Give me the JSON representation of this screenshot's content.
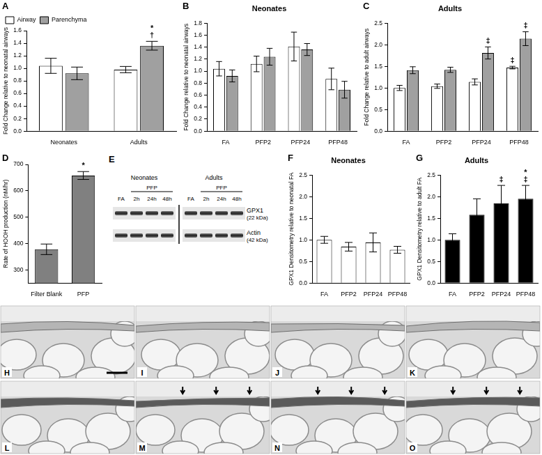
{
  "chart_data": [
    {
      "type": "bar",
      "panel": "A",
      "y_label": "Fold Change relative to neonatal airways",
      "categories": [
        "Neonates",
        "Adults"
      ],
      "series": [
        {
          "name": "Airway",
          "color": "#ffffff",
          "values": [
            1.04,
            0.98
          ],
          "errors": [
            0.12,
            0.05
          ]
        },
        {
          "name": "Parenchyma",
          "color": "#a0a0a0",
          "values": [
            0.92,
            1.36
          ],
          "errors": [
            0.1,
            0.07
          ]
        }
      ],
      "ylim": [
        0,
        1.6
      ],
      "yticks": [
        {
          "value": 0,
          "label": "0.0"
        },
        {
          "value": 0.2,
          "label": "0.2"
        },
        {
          "value": 0.4,
          "label": "0.4"
        },
        {
          "value": 0.6,
          "label": "0.6"
        },
        {
          "value": 0.8,
          "label": "0.8"
        },
        {
          "value": 1.0,
          "label": "1.0"
        },
        {
          "value": 1.2,
          "label": "1.2"
        },
        {
          "value": 1.4,
          "label": "1.4"
        },
        {
          "value": 1.6,
          "label": "1.6"
        }
      ],
      "annotations": [
        {
          "category": "Adults",
          "series": "Parenchyma",
          "text": "†"
        },
        {
          "category": "Adults",
          "series": "Parenchyma",
          "text": "*"
        }
      ],
      "legend": "upper left",
      "grid": false
    },
    {
      "type": "bar",
      "panel": "B",
      "title": "Neonates",
      "y_label": "Fold Change relative to neonatal airways",
      "categories": [
        "FA",
        "PFP2",
        "PFP24",
        "PFP48"
      ],
      "series": [
        {
          "name": "Airway",
          "color": "#ffffff",
          "values": [
            1.04,
            1.12,
            1.41,
            0.87
          ],
          "errors": [
            0.12,
            0.13,
            0.24,
            0.18
          ]
        },
        {
          "name": "Parenchyma",
          "color": "#a0a0a0",
          "values": [
            0.92,
            1.24,
            1.36,
            0.69
          ],
          "errors": [
            0.1,
            0.14,
            0.1,
            0.14
          ]
        }
      ],
      "ylim": [
        0,
        1.8
      ],
      "yticks": [
        {
          "value": 0,
          "label": "0.0"
        },
        {
          "value": 0.2,
          "label": "0.2"
        },
        {
          "value": 0.4,
          "label": "0.4"
        },
        {
          "value": 0.6,
          "label": "0.6"
        },
        {
          "value": 0.8,
          "label": "0.8"
        },
        {
          "value": 1.0,
          "label": "1.0"
        },
        {
          "value": 1.2,
          "label": "1.2"
        },
        {
          "value": 1.4,
          "label": "1.4"
        },
        {
          "value": 1.6,
          "label": "1.6"
        },
        {
          "value": 1.8,
          "label": "1.8"
        }
      ],
      "grid": false
    },
    {
      "type": "bar",
      "panel": "C",
      "title": "Adults",
      "y_label": "Fold Change relative to adult airways",
      "categories": [
        "FA",
        "PFP2",
        "PFP24",
        "PFP48"
      ],
      "series": [
        {
          "name": "Airway",
          "color": "#ffffff",
          "values": [
            1.0,
            1.04,
            1.14,
            1.47
          ],
          "errors": [
            0.06,
            0.05,
            0.07,
            0.03
          ]
        },
        {
          "name": "Parenchyma",
          "color": "#a0a0a0",
          "values": [
            1.41,
            1.42,
            1.81,
            2.14
          ],
          "errors": [
            0.08,
            0.06,
            0.14,
            0.16
          ]
        }
      ],
      "ylim": [
        0,
        2.5
      ],
      "yticks": [
        {
          "value": 0,
          "label": "0.0"
        },
        {
          "value": 0.5,
          "label": "0.5"
        },
        {
          "value": 1.0,
          "label": "1.0"
        },
        {
          "value": 1.5,
          "label": "1.5"
        },
        {
          "value": 2.0,
          "label": "2.0"
        },
        {
          "value": 2.5,
          "label": "2.5"
        }
      ],
      "annotations": [
        {
          "category": "PFP24",
          "series": "Parenchyma",
          "text": "‡"
        },
        {
          "category": "PFP48",
          "series": "Airway",
          "text": "‡"
        },
        {
          "category": "PFP48",
          "series": "Parenchyma",
          "text": "‡"
        }
      ],
      "grid": false
    },
    {
      "type": "bar",
      "panel": "D",
      "y_label": "Rate of HOOH production (nM/hr)",
      "categories": [
        "Filter Blank",
        "PFP"
      ],
      "values": [
        378,
        658
      ],
      "errors": [
        20,
        15
      ],
      "color": "#808080",
      "ylim": [
        250,
        700
      ],
      "yticks": [
        300,
        400,
        500,
        600,
        700
      ],
      "annotations": [
        {
          "category": "PFP",
          "text": "*"
        }
      ],
      "grid": false
    },
    {
      "type": "bar",
      "panel": "F",
      "title": "Neonates",
      "y_label": "GPX1 Densitometry relative to neonatal FA",
      "categories": [
        "FA",
        "PFP2",
        "PFP24",
        "PFP48"
      ],
      "values": [
        1.0,
        0.84,
        0.94,
        0.77
      ],
      "errors": [
        0.08,
        0.1,
        0.22,
        0.08
      ],
      "color": "#ffffff",
      "ylim": [
        0,
        2.5
      ],
      "yticks": [
        {
          "value": 0,
          "label": "0.0"
        },
        {
          "value": 0.5,
          "label": "0.5"
        },
        {
          "value": 1.0,
          "label": "1.0"
        },
        {
          "value": 1.5,
          "label": "1.5"
        },
        {
          "value": 2.0,
          "label": "2.0"
        },
        {
          "value": 2.5,
          "label": "2.5"
        }
      ],
      "grid": false
    },
    {
      "type": "bar",
      "panel": "G",
      "title": "Adults",
      "y_label": "GPX1 Densitometry relative to adult FA",
      "categories": [
        "FA",
        "PFP2",
        "PFP24",
        "PFP48"
      ],
      "values": [
        1.0,
        1.58,
        1.84,
        1.95
      ],
      "errors": [
        0.14,
        0.37,
        0.42,
        0.31
      ],
      "color": "#000000",
      "ylim": [
        0,
        2.5
      ],
      "yticks": [
        {
          "value": 0,
          "label": "0.0"
        },
        {
          "value": 0.5,
          "label": "0.5"
        },
        {
          "value": 1.0,
          "label": "1.0"
        },
        {
          "value": 1.5,
          "label": "1.5"
        },
        {
          "value": 2.0,
          "label": "2.0"
        },
        {
          "value": 2.5,
          "label": "2.5"
        }
      ],
      "annotations": [
        {
          "category": "PFP24",
          "text": "‡"
        },
        {
          "category": "PFP48",
          "text": "‡"
        },
        {
          "category": "PFP48",
          "text": "*"
        }
      ],
      "grid": false
    }
  ],
  "blot": {
    "panel": "E",
    "treatment": "PFP",
    "groups": [
      {
        "label": "Neonates",
        "lanes": [
          "FA",
          "2h",
          "24h",
          "48h"
        ]
      },
      {
        "label": "Adults",
        "lanes": [
          "FA",
          "2h",
          "24h",
          "48h"
        ]
      }
    ],
    "bands": [
      {
        "label": "GPX1",
        "size": "(22 kDa)"
      },
      {
        "label": "Actin",
        "size": "(42 kDa)"
      }
    ]
  },
  "micrographs": {
    "panels": [
      "H",
      "I",
      "J",
      "K",
      "L",
      "M",
      "N",
      "O"
    ]
  }
}
